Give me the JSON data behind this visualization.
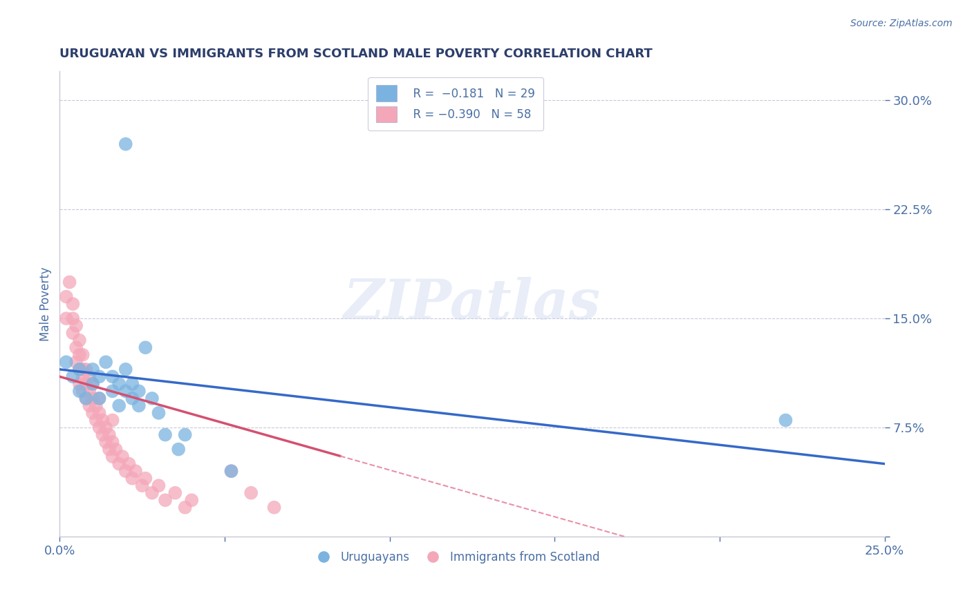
{
  "title": "URUGUAYAN VS IMMIGRANTS FROM SCOTLAND MALE POVERTY CORRELATION CHART",
  "source": "Source: ZipAtlas.com",
  "xlabel": "",
  "ylabel": "Male Poverty",
  "xlim": [
    0.0,
    0.25
  ],
  "ylim": [
    0.0,
    0.32
  ],
  "ytick_labels": [
    "",
    "7.5%",
    "15.0%",
    "22.5%",
    "30.0%"
  ],
  "ytick_vals": [
    0.0,
    0.075,
    0.15,
    0.225,
    0.3
  ],
  "xtick_labels": [
    "0.0%",
    "",
    "",
    "",
    "",
    "25.0%"
  ],
  "xtick_vals": [
    0.0,
    0.05,
    0.1,
    0.15,
    0.2,
    0.25
  ],
  "title_color": "#2c3e6b",
  "axis_color": "#4a6fa5",
  "watermark": "ZIPatlas",
  "blue_color": "#7ab3e0",
  "pink_color": "#f4a7b9",
  "blue_line_color": "#3569c8",
  "pink_line_color": "#d45070",
  "pink_dash_color": "#e890a8",
  "grid_color": "#c8c8d8",
  "uruguayan_x": [
    0.002,
    0.004,
    0.006,
    0.006,
    0.008,
    0.01,
    0.01,
    0.012,
    0.012,
    0.014,
    0.016,
    0.016,
    0.018,
    0.018,
    0.02,
    0.02,
    0.022,
    0.022,
    0.024,
    0.024,
    0.026,
    0.028,
    0.03,
    0.032,
    0.036,
    0.038,
    0.052,
    0.22,
    0.02
  ],
  "uruguayan_y": [
    0.12,
    0.11,
    0.1,
    0.115,
    0.095,
    0.105,
    0.115,
    0.095,
    0.11,
    0.12,
    0.1,
    0.11,
    0.09,
    0.105,
    0.115,
    0.1,
    0.105,
    0.095,
    0.1,
    0.09,
    0.13,
    0.095,
    0.085,
    0.07,
    0.06,
    0.07,
    0.045,
    0.08,
    0.27
  ],
  "scotland_x": [
    0.002,
    0.002,
    0.003,
    0.004,
    0.004,
    0.005,
    0.005,
    0.006,
    0.006,
    0.006,
    0.007,
    0.007,
    0.007,
    0.008,
    0.008,
    0.008,
    0.009,
    0.009,
    0.01,
    0.01,
    0.01,
    0.011,
    0.011,
    0.012,
    0.012,
    0.013,
    0.013,
    0.014,
    0.014,
    0.015,
    0.015,
    0.016,
    0.016,
    0.017,
    0.018,
    0.019,
    0.02,
    0.021,
    0.022,
    0.023,
    0.025,
    0.026,
    0.028,
    0.03,
    0.032,
    0.035,
    0.038,
    0.04,
    0.004,
    0.005,
    0.006,
    0.007,
    0.009,
    0.012,
    0.016,
    0.052,
    0.058,
    0.065
  ],
  "scotland_y": [
    0.165,
    0.15,
    0.175,
    0.14,
    0.15,
    0.13,
    0.12,
    0.115,
    0.105,
    0.125,
    0.11,
    0.1,
    0.115,
    0.095,
    0.105,
    0.115,
    0.09,
    0.1,
    0.085,
    0.095,
    0.105,
    0.08,
    0.09,
    0.075,
    0.085,
    0.07,
    0.08,
    0.065,
    0.075,
    0.06,
    0.07,
    0.055,
    0.065,
    0.06,
    0.05,
    0.055,
    0.045,
    0.05,
    0.04,
    0.045,
    0.035,
    0.04,
    0.03,
    0.035,
    0.025,
    0.03,
    0.02,
    0.025,
    0.16,
    0.145,
    0.135,
    0.125,
    0.11,
    0.095,
    0.08,
    0.045,
    0.03,
    0.02
  ]
}
